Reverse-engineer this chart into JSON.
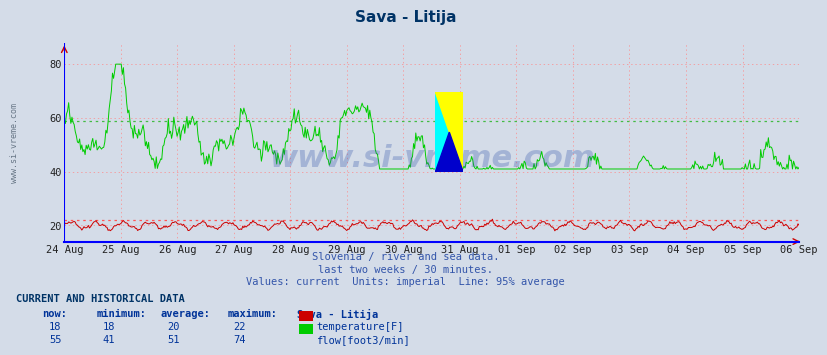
{
  "title": "Sava - Litija",
  "background_color": "#d4dce8",
  "plot_bg_color": "#d4dce8",
  "subtitle_lines": [
    "Slovenia / river and sea data.",
    "last two weeks / 30 minutes.",
    "Values: current  Units: imperial  Line: 95% average"
  ],
  "x_labels": [
    "24 Aug",
    "25 Aug",
    "26 Aug",
    "27 Aug",
    "28 Aug",
    "29 Aug",
    "30 Aug",
    "31 Aug",
    "01 Sep",
    "02 Sep",
    "03 Sep",
    "04 Sep",
    "05 Sep",
    "06 Sep"
  ],
  "y_ticks": [
    20,
    40,
    60,
    80
  ],
  "ylim": [
    14,
    88
  ],
  "temp_avg_line": 22,
  "flow_avg_line": 59,
  "temp_color": "#cc0000",
  "flow_color": "#00cc00",
  "grid_color": "#ff8888",
  "avg_line_color_temp": "#ff5555",
  "avg_line_color_flow": "#44bb44",
  "table_header": "CURRENT AND HISTORICAL DATA",
  "table_data": [
    [
      18,
      18,
      20,
      22,
      "temperature[F]"
    ],
    [
      55,
      41,
      51,
      74,
      "flow[foot3/min]"
    ]
  ],
  "watermark_text": "www.si-vreme.com",
  "watermark_color": "#3355aa",
  "watermark_alpha": 0.3,
  "n_points": 672
}
